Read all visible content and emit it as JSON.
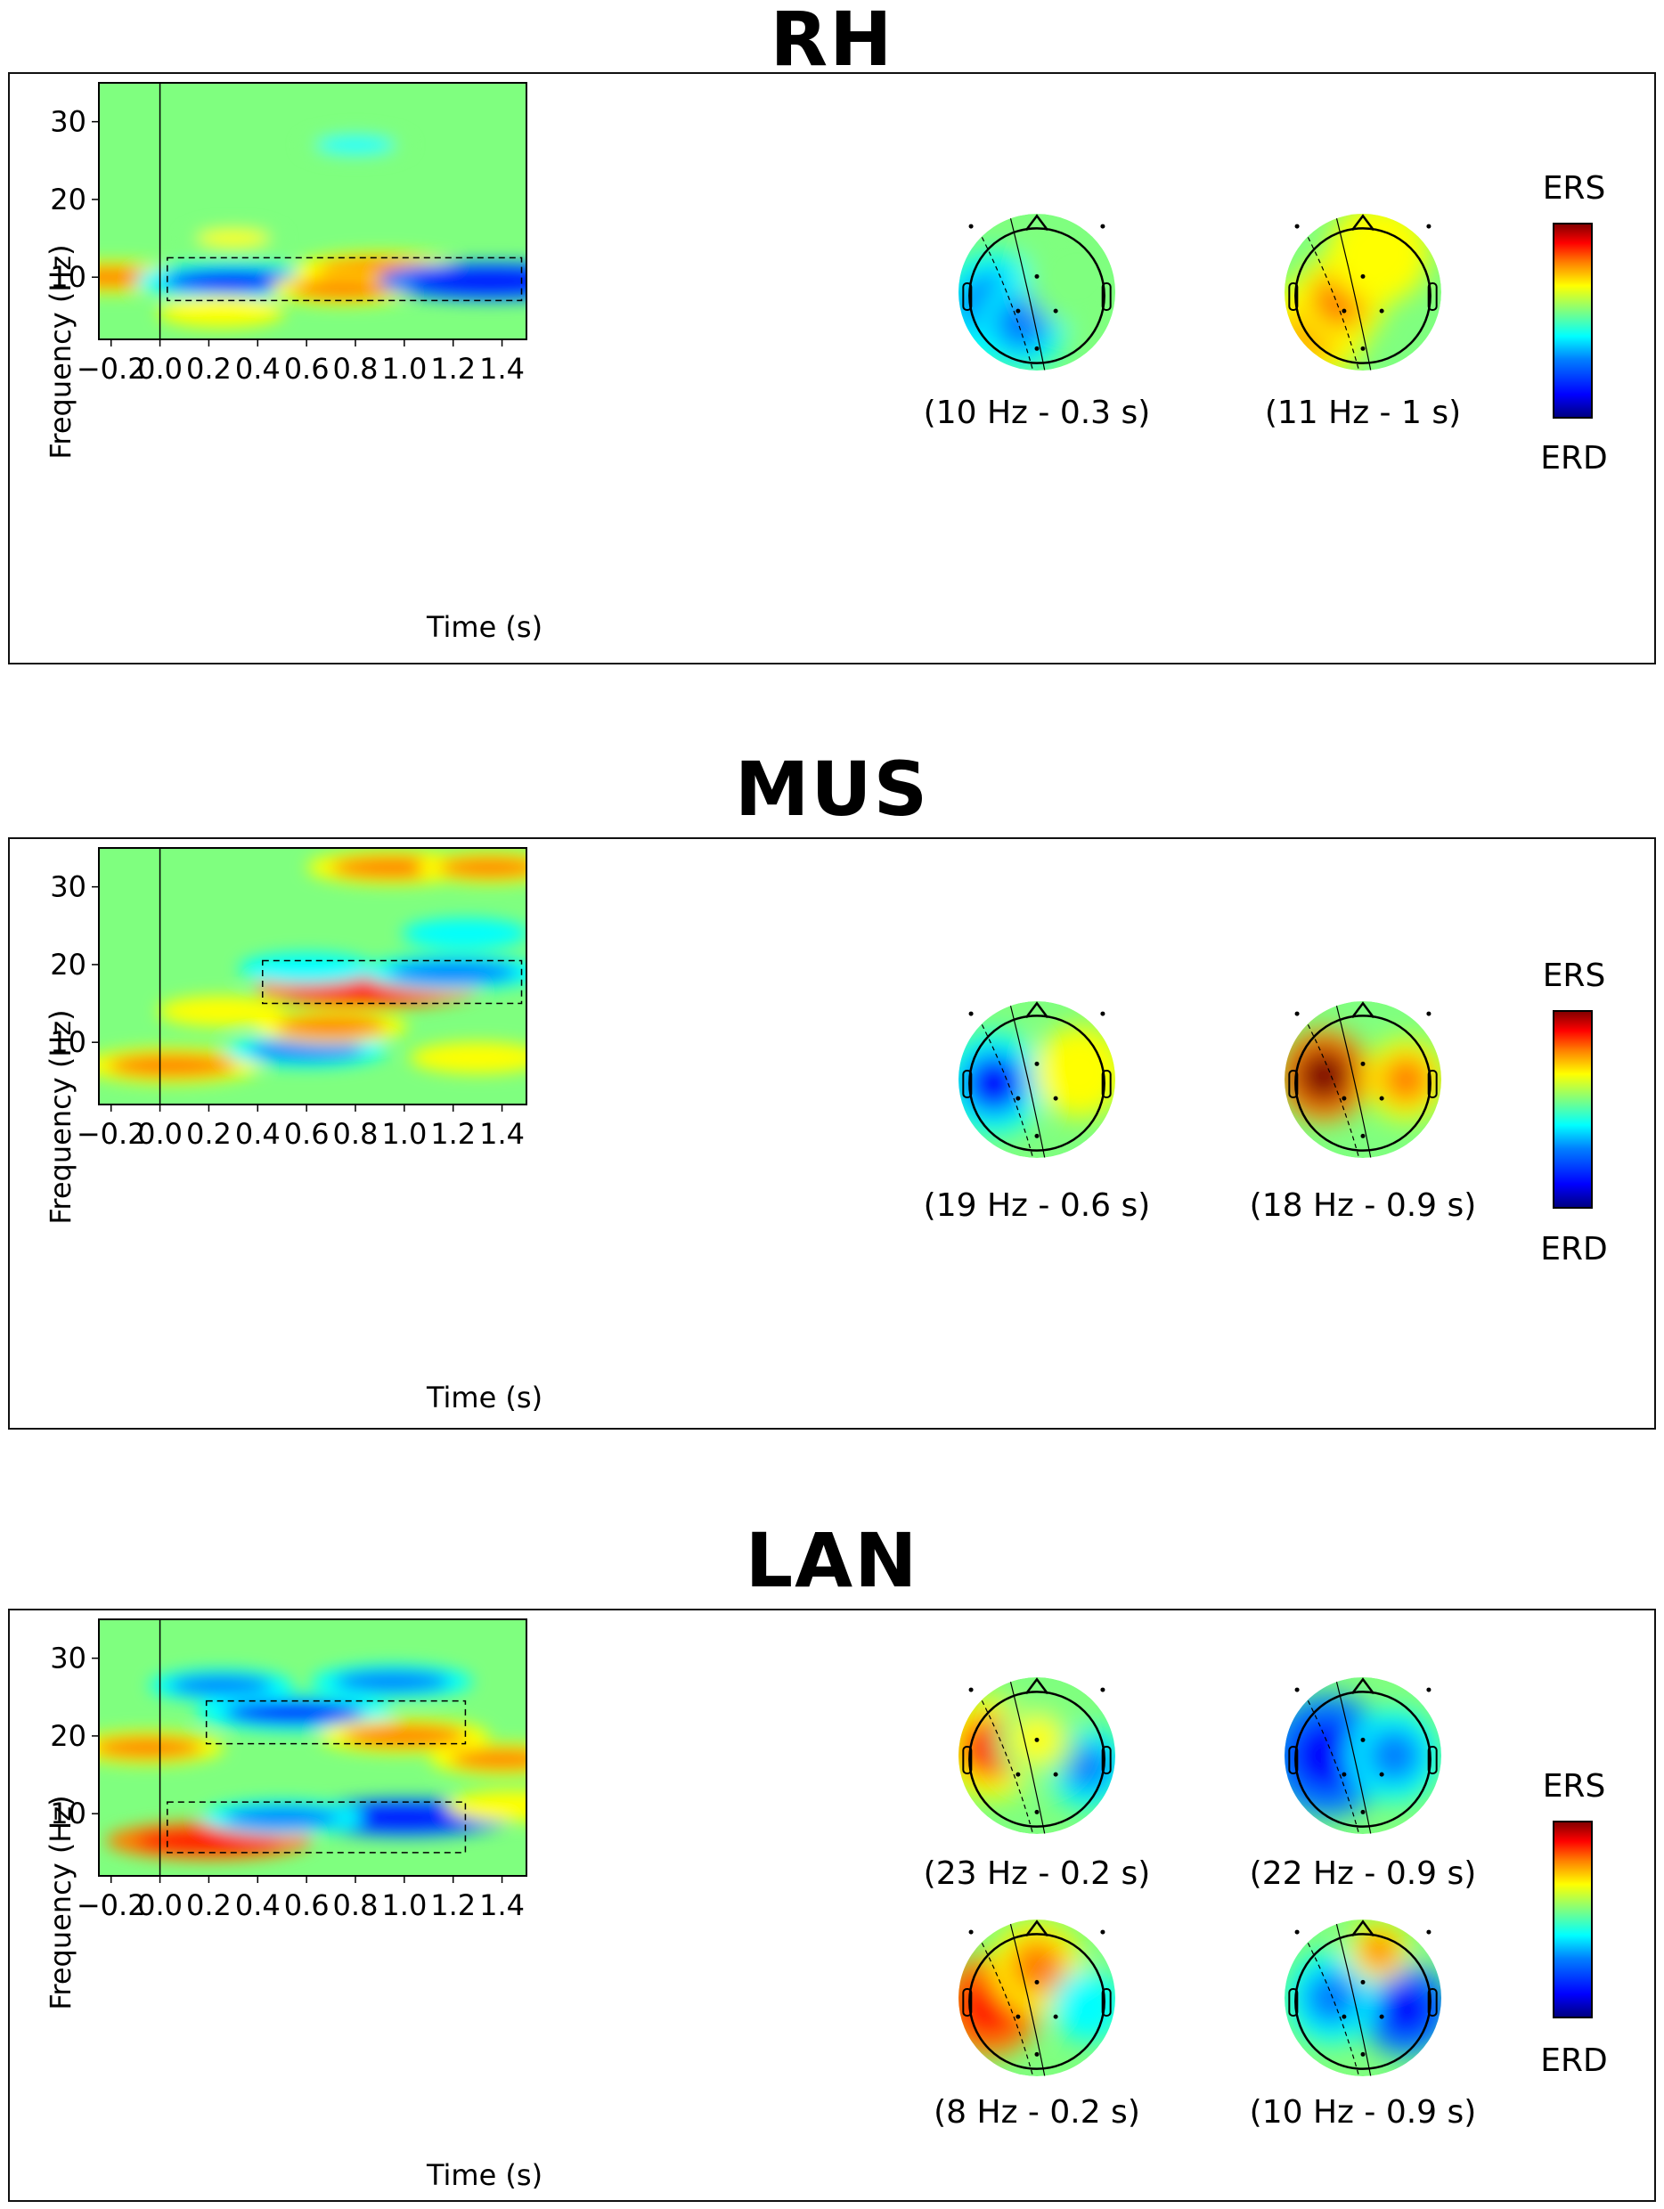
{
  "figure": {
    "axis": {
      "xlabel": "Time (s)",
      "ylabel": "Frequency (Hz)",
      "x_ticks": [
        "−0.2",
        "0.0",
        "0.2",
        "0.4",
        "0.6",
        "0.8",
        "1.0",
        "1.2",
        "1.4"
      ],
      "y_ticks": [
        "10",
        "20",
        "30"
      ]
    },
    "colorbar": {
      "top_label": "ERS",
      "bottom_label": "ERD"
    },
    "colormap": [
      "#00007f",
      "#0000ff",
      "#007fff",
      "#00ffff",
      "#7fff7f",
      "#ffff00",
      "#ff7f00",
      "#ff0000",
      "#7f0000"
    ]
  },
  "panels": [
    {
      "title": "RH",
      "topomaps": [
        {
          "caption": "(10 Hz - 0.3 s)"
        },
        {
          "caption": "(11 Hz - 1 s)"
        }
      ]
    },
    {
      "title": "MUS",
      "topomaps": [
        {
          "caption": "(19 Hz - 0.6 s)"
        },
        {
          "caption": "(18 Hz - 0.9 s)"
        }
      ]
    },
    {
      "title": "LAN",
      "topomaps": [
        {
          "caption": "(23 Hz - 0.2 s)"
        },
        {
          "caption": "(22 Hz - 0.9 s)"
        },
        {
          "caption": "(8 Hz - 0.2 s)"
        },
        {
          "caption": "(10 Hz - 0.9 s)"
        }
      ]
    }
  ],
  "chart_data": [
    {
      "type": "heatmap",
      "title": "RH",
      "xlabel": "Time (s)",
      "ylabel": "Frequency (Hz)",
      "xlim": [
        -0.25,
        1.5
      ],
      "ylim": [
        2,
        35
      ],
      "baseline_line_x": 0.0,
      "blobs": [
        {
          "t": -0.2,
          "f": 10,
          "v": 0.4
        },
        {
          "t": 0.3,
          "f": 9.5,
          "v": -0.7
        },
        {
          "t": 0.9,
          "f": 11,
          "v": 0.55
        },
        {
          "t": 0.75,
          "f": 8.5,
          "v": 0.4
        },
        {
          "t": 1.35,
          "f": 9.5,
          "v": -0.85
        },
        {
          "t": 0.25,
          "f": 5.5,
          "v": 0.3
        },
        {
          "t": 0.8,
          "f": 27,
          "v": -0.2
        },
        {
          "t": 0.3,
          "f": 15,
          "v": 0.15
        }
      ],
      "highlight_boxes": [
        {
          "t0": 0.03,
          "t1": 1.48,
          "f0": 7,
          "f1": 12.5
        }
      ]
    },
    {
      "type": "heatmap",
      "title": "MUS",
      "xlabel": "Time (s)",
      "ylabel": "Frequency (Hz)",
      "xlim": [
        -0.25,
        1.5
      ],
      "ylim": [
        2,
        35
      ],
      "baseline_line_x": 0.0,
      "blobs": [
        {
          "t": 0.85,
          "f": 17,
          "v": 0.85
        },
        {
          "t": 1.2,
          "f": 19,
          "v": -0.6
        },
        {
          "t": 0.6,
          "f": 19.5,
          "v": -0.35
        },
        {
          "t": 0.05,
          "f": 7,
          "v": 0.6
        },
        {
          "t": 0.6,
          "f": 9,
          "v": -0.5
        },
        {
          "t": 0.95,
          "f": 32.5,
          "v": 0.55
        },
        {
          "t": 1.35,
          "f": 32.5,
          "v": 0.4
        },
        {
          "t": 0.7,
          "f": 12,
          "v": 0.45
        },
        {
          "t": 0.25,
          "f": 14,
          "v": 0.3
        },
        {
          "t": 1.3,
          "f": 8,
          "v": 0.35
        },
        {
          "t": 1.25,
          "f": 24,
          "v": -0.3
        }
      ],
      "highlight_boxes": [
        {
          "t0": 0.42,
          "t1": 1.48,
          "f0": 15,
          "f1": 20.5
        }
      ]
    },
    {
      "type": "heatmap",
      "title": "LAN",
      "xlabel": "Time (s)",
      "ylabel": "Frequency (Hz)",
      "xlim": [
        -0.25,
        1.5
      ],
      "ylim": [
        2,
        35
      ],
      "baseline_line_x": 0.0,
      "blobs": [
        {
          "t": 0.2,
          "f": 6.5,
          "v": 0.75
        },
        {
          "t": 1.0,
          "f": 9.5,
          "v": -0.8
        },
        {
          "t": 0.5,
          "f": 9.5,
          "v": -0.5
        },
        {
          "t": 0.55,
          "f": 23,
          "v": -0.7
        },
        {
          "t": 1.0,
          "f": 20,
          "v": 0.55
        },
        {
          "t": 0.95,
          "f": 27,
          "v": -0.5
        },
        {
          "t": -0.05,
          "f": 18.5,
          "v": 0.45
        },
        {
          "t": 1.4,
          "f": 17,
          "v": 0.4
        },
        {
          "t": 0.25,
          "f": 26.5,
          "v": -0.4
        },
        {
          "t": 1.45,
          "f": 11,
          "v": 0.35
        }
      ],
      "highlight_boxes": [
        {
          "t0": 0.19,
          "t1": 1.25,
          "f0": 19,
          "f1": 24.5
        },
        {
          "t0": 0.03,
          "t1": 1.25,
          "f0": 5,
          "f1": 11.5
        }
      ]
    }
  ]
}
